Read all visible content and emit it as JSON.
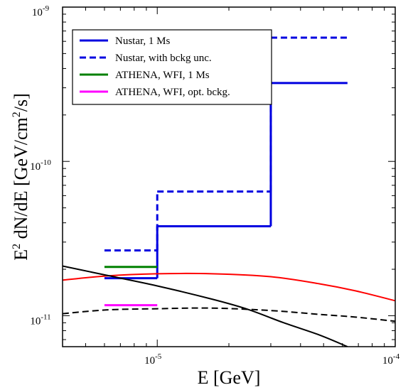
{
  "chart_data": {
    "type": "line",
    "xscale": "log",
    "yscale": "log",
    "x_label": "E [GeV]",
    "y_label": [
      "E",
      "2",
      " dN/dE [GeV/cm",
      "2",
      "/s]"
    ],
    "xlim": [
      4e-06,
      0.0001
    ],
    "ylim": [
      6.3e-12,
      1e-09
    ],
    "xticks": [
      {
        "value": 1e-05,
        "label": "10",
        "sup": "-5"
      },
      {
        "value": 0.0001,
        "label": "10",
        "sup": "-4"
      }
    ],
    "yticks": [
      {
        "value": 1e-11,
        "label": "10",
        "sup": "-11"
      },
      {
        "value": 1e-10,
        "label": "10",
        "sup": "-10"
      },
      {
        "value": 1e-09,
        "label": "10",
        "sup": "-9"
      }
    ],
    "xminor": [
      5e-06,
      6e-06,
      7e-06,
      8e-06,
      9e-06,
      2e-05,
      3e-05,
      4e-05,
      5e-05,
      6e-05,
      7e-05,
      8e-05,
      9e-05
    ],
    "yminor": [
      7e-12,
      8e-12,
      9e-12,
      2e-11,
      3e-11,
      4e-11,
      5e-11,
      6e-11,
      7e-11,
      8e-11,
      9e-11,
      2e-10,
      3e-10,
      4e-10,
      5e-10,
      6e-10,
      7e-10,
      8e-10,
      9e-10
    ],
    "legend": "upper left",
    "series": [
      {
        "name": "Nustar, 1 Ms",
        "type": "step",
        "color": "#0000e0",
        "dash": false,
        "bins": [
          6e-06,
          1e-05,
          3e-05,
          6.3e-05
        ],
        "values": [
          1.75e-11,
          3.8e-11,
          3.22e-10
        ]
      },
      {
        "name": "Nustar, with bckg unc.",
        "type": "step",
        "color": "#0000e0",
        "dash": true,
        "bins": [
          6e-06,
          1e-05,
          3e-05,
          6.3e-05
        ],
        "values": [
          2.65e-11,
          6.38e-11,
          6.34e-10
        ]
      },
      {
        "name": "ATHENA, WFI, 1 Ms",
        "type": "step",
        "color": "#008000",
        "dash": false,
        "bins": [
          6e-06,
          1e-05
        ],
        "values": [
          2.07e-11
        ]
      },
      {
        "name": "ATHENA, WFI, opt. bckg.",
        "type": "step",
        "color": "#ff00ff",
        "dash": false,
        "bins": [
          6e-06,
          1e-05
        ],
        "values": [
          1.17e-11
        ]
      },
      {
        "type": "line",
        "color": "#ff0000",
        "dash": false,
        "x": [
          4e-06,
          6.1e-06,
          1e-05,
          1.7e-05,
          3e-05,
          4.8e-05,
          6.8e-05,
          0.0001
        ],
        "values": [
          1.7e-11,
          1.81e-11,
          1.87e-11,
          1.87e-11,
          1.79e-11,
          1.61e-11,
          1.45e-11,
          1.25e-11
        ]
      },
      {
        "type": "line",
        "color": "#000000",
        "dash": false,
        "x": [
          4e-06,
          6.1e-06,
          1e-05,
          1.7e-05,
          2.4e-05,
          3.4e-05,
          4.8e-05,
          6.3e-05
        ],
        "values": [
          2.1e-11,
          1.83e-11,
          1.56e-11,
          1.28e-11,
          1.1e-11,
          9e-12,
          7.5e-12,
          6.3e-12
        ]
      },
      {
        "type": "line",
        "color": "#000000",
        "dash": true,
        "x": [
          4e-06,
          6.1e-06,
          1e-05,
          1.7e-05,
          3e-05,
          4.8e-05,
          6.8e-05,
          0.0001
        ],
        "values": [
          1.03e-11,
          1.09e-11,
          1.11e-11,
          1.12e-11,
          1.08e-11,
          1.02e-11,
          9.8e-12,
          9.2e-12
        ]
      }
    ]
  }
}
